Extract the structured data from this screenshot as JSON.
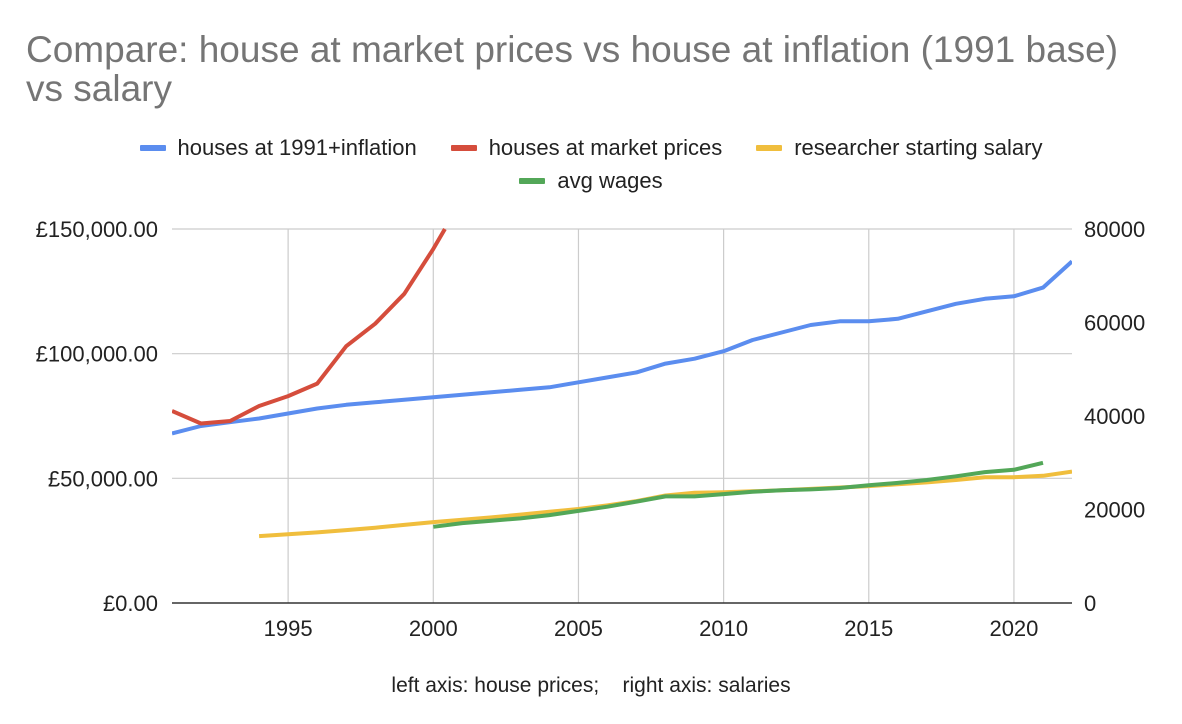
{
  "chart_data": {
    "type": "line",
    "title": "Compare: house at market prices vs house at inflation (1991 base) vs salary",
    "footnote": "left axis: house prices;    right axis: salaries",
    "legend_position": "top",
    "grid": true,
    "xlim": [
      1991,
      2022
    ],
    "x_ticks": [
      "1995",
      "2000",
      "2005",
      "2010",
      "2015",
      "2020"
    ],
    "x_tick_values": [
      1995,
      2000,
      2005,
      2010,
      2015,
      2020
    ],
    "y_left": {
      "ylim": [
        0,
        150000
      ],
      "ticks": [
        "£0.00",
        "£50,000.00",
        "£100,000.00",
        "£150,000.00"
      ],
      "tick_values": [
        0,
        50000,
        100000,
        150000
      ]
    },
    "y_right": {
      "ylim": [
        0,
        80000
      ],
      "ticks": [
        "0",
        "20000",
        "40000",
        "60000",
        "80000"
      ],
      "tick_values": [
        0,
        20000,
        40000,
        60000,
        80000
      ]
    },
    "series": [
      {
        "name": "houses at 1991+inflation",
        "axis": "left",
        "color": "#5B8DEF",
        "x": [
          1991,
          1992,
          1993,
          1994,
          1995,
          1996,
          1997,
          1998,
          1999,
          2000,
          2001,
          2002,
          2003,
          2004,
          2005,
          2006,
          2007,
          2008,
          2009,
          2010,
          2011,
          2012,
          2013,
          2014,
          2015,
          2016,
          2017,
          2018,
          2019,
          2020,
          2021,
          2022
        ],
        "values": [
          68000,
          71000,
          72500,
          74000,
          76000,
          78000,
          79500,
          80500,
          81500,
          82500,
          83500,
          84500,
          85500,
          86500,
          88500,
          90500,
          92500,
          96000,
          98000,
          101000,
          105500,
          108500,
          111500,
          113000,
          113000,
          114000,
          117000,
          120000,
          122000,
          123000,
          126500,
          137000
        ]
      },
      {
        "name": "houses at market prices",
        "axis": "left",
        "color": "#D54D3C",
        "x": [
          1991,
          1992,
          1993,
          1994,
          1995,
          1996,
          1997,
          1998,
          1999,
          2000,
          2000.4
        ],
        "values": [
          77000,
          72000,
          73000,
          79000,
          83000,
          88000,
          103000,
          112000,
          124000,
          142000,
          150000
        ]
      },
      {
        "name": "researcher starting salary",
        "axis": "right",
        "color": "#F0BE3D",
        "x": [
          1994,
          1995,
          1996,
          1997,
          1998,
          1999,
          2000,
          2001,
          2002,
          2003,
          2004,
          2005,
          2006,
          2007,
          2008,
          2009,
          2010,
          2011,
          2012,
          2013,
          2014,
          2015,
          2016,
          2017,
          2018,
          2019,
          2020,
          2021,
          2022
        ],
        "values": [
          14300,
          14700,
          15100,
          15600,
          16100,
          16700,
          17300,
          17800,
          18300,
          18900,
          19500,
          20100,
          20900,
          21800,
          23000,
          23600,
          23700,
          23900,
          24100,
          24400,
          24700,
          25000,
          25400,
          25800,
          26300,
          26900,
          26900,
          27200,
          28100
        ]
      },
      {
        "name": "avg wages",
        "axis": "right",
        "color": "#53A758",
        "x": [
          2000,
          2001,
          2002,
          2003,
          2004,
          2005,
          2006,
          2007,
          2008,
          2009,
          2010,
          2011,
          2012,
          2013,
          2014,
          2015,
          2016,
          2017,
          2018,
          2019,
          2020,
          2021
        ],
        "values": [
          16300,
          17100,
          17600,
          18100,
          18800,
          19700,
          20600,
          21700,
          22800,
          22800,
          23300,
          23800,
          24100,
          24300,
          24600,
          25200,
          25700,
          26300,
          27100,
          28000,
          28500,
          30000
        ]
      }
    ]
  }
}
